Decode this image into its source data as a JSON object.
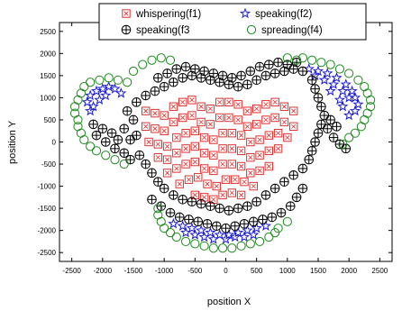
{
  "chart_data": {
    "type": "scatter",
    "title": "",
    "xlabel": "position X",
    "ylabel": "position Y",
    "xlim": [
      -2700,
      2700
    ],
    "ylim": [
      -2700,
      2700
    ],
    "xticks": [
      -2500,
      -2000,
      -1500,
      -1000,
      -500,
      0,
      500,
      1000,
      1500,
      2000,
      2500
    ],
    "yticks": [
      -2500,
      -2000,
      -1500,
      -1000,
      -500,
      0,
      500,
      1000,
      1500,
      2000,
      2500
    ],
    "grid": false,
    "legend_position": "top-center",
    "series": [
      {
        "name": "whispering(f1)",
        "marker": "square-x",
        "color": "#e03030",
        "points": [
          [
            -1300,
            700
          ],
          [
            -1150,
            650
          ],
          [
            -1000,
            600
          ],
          [
            -850,
            800
          ],
          [
            -700,
            900
          ],
          [
            -550,
            950
          ],
          [
            -400,
            800
          ],
          [
            -250,
            750
          ],
          [
            -100,
            900
          ],
          [
            50,
            900
          ],
          [
            200,
            850
          ],
          [
            350,
            700
          ],
          [
            500,
            750
          ],
          [
            650,
            850
          ],
          [
            800,
            900
          ],
          [
            950,
            800
          ],
          [
            1100,
            700
          ],
          [
            -1300,
            350
          ],
          [
            -1150,
            300
          ],
          [
            -1000,
            250
          ],
          [
            -850,
            450
          ],
          [
            -700,
            550
          ],
          [
            -550,
            600
          ],
          [
            -400,
            450
          ],
          [
            -250,
            400
          ],
          [
            -100,
            550
          ],
          [
            50,
            550
          ],
          [
            200,
            500
          ],
          [
            350,
            350
          ],
          [
            500,
            400
          ],
          [
            650,
            500
          ],
          [
            800,
            550
          ],
          [
            950,
            450
          ],
          [
            1100,
            350
          ],
          [
            -1250,
            0
          ],
          [
            -1100,
            -50
          ],
          [
            -950,
            -100
          ],
          [
            -800,
            100
          ],
          [
            -650,
            200
          ],
          [
            -500,
            250
          ],
          [
            -350,
            100
          ],
          [
            -200,
            50
          ],
          [
            -50,
            200
          ],
          [
            100,
            200
          ],
          [
            250,
            150
          ],
          [
            400,
            0
          ],
          [
            550,
            50
          ],
          [
            700,
            150
          ],
          [
            850,
            200
          ],
          [
            1000,
            100
          ],
          [
            -1100,
            -350
          ],
          [
            -950,
            -400
          ],
          [
            -800,
            -250
          ],
          [
            -650,
            -150
          ],
          [
            -500,
            -100
          ],
          [
            -350,
            -250
          ],
          [
            -200,
            -300
          ],
          [
            -50,
            -150
          ],
          [
            100,
            -150
          ],
          [
            250,
            -200
          ],
          [
            400,
            -350
          ],
          [
            550,
            -300
          ],
          [
            700,
            -200
          ],
          [
            850,
            -150
          ],
          [
            -950,
            -700
          ],
          [
            -800,
            -600
          ],
          [
            -650,
            -500
          ],
          [
            -500,
            -450
          ],
          [
            -350,
            -600
          ],
          [
            -200,
            -650
          ],
          [
            -50,
            -500
          ],
          [
            100,
            -500
          ],
          [
            250,
            -550
          ],
          [
            400,
            -700
          ],
          [
            550,
            -650
          ],
          [
            700,
            -550
          ],
          [
            -750,
            -950
          ],
          [
            -600,
            -850
          ],
          [
            -450,
            -800
          ],
          [
            -300,
            -950
          ],
          [
            -150,
            -1000
          ],
          [
            0,
            -850
          ],
          [
            150,
            -850
          ],
          [
            300,
            -900
          ],
          [
            450,
            -1000
          ],
          [
            -500,
            -1200
          ],
          [
            -350,
            -1250
          ],
          [
            -200,
            -1300
          ],
          [
            -50,
            -1200
          ],
          [
            100,
            -1150
          ],
          [
            250,
            -1200
          ]
        ]
      },
      {
        "name": "speaking(f2)",
        "marker": "star",
        "color": "#1a1adc",
        "points": [
          [
            -2200,
            1050
          ],
          [
            -2100,
            1150
          ],
          [
            -2000,
            1200
          ],
          [
            -1900,
            1250
          ],
          [
            -1800,
            1200
          ],
          [
            -1700,
            1100
          ],
          [
            -2250,
            900
          ],
          [
            -2150,
            800
          ],
          [
            -2050,
            950
          ],
          [
            -1950,
            1050
          ],
          [
            -2200,
            700
          ],
          [
            1350,
            1650
          ],
          [
            1500,
            1600
          ],
          [
            1650,
            1550
          ],
          [
            1800,
            1450
          ],
          [
            1950,
            1300
          ],
          [
            2050,
            1150
          ],
          [
            2100,
            1000
          ],
          [
            2150,
            850
          ],
          [
            2100,
            700
          ],
          [
            2000,
            600
          ],
          [
            1450,
            1500
          ],
          [
            1600,
            1400
          ],
          [
            1750,
            1300
          ],
          [
            1900,
            1150
          ],
          [
            2000,
            1000
          ],
          [
            1700,
            1150
          ],
          [
            1850,
            950
          ],
          [
            1900,
            800
          ],
          [
            -850,
            -1850
          ],
          [
            -700,
            -1900
          ],
          [
            -550,
            -1950
          ],
          [
            -400,
            -2000
          ],
          [
            -250,
            -2050
          ],
          [
            -100,
            -2100
          ],
          [
            50,
            -2100
          ],
          [
            200,
            -2050
          ],
          [
            350,
            -2000
          ],
          [
            500,
            -1950
          ],
          [
            650,
            -1900
          ],
          [
            -650,
            -2050
          ],
          [
            -500,
            -2100
          ],
          [
            -350,
            -2150
          ],
          [
            -200,
            -2200
          ],
          [
            0,
            -2200
          ],
          [
            150,
            -2150
          ],
          [
            300,
            -2150
          ],
          [
            450,
            -2100
          ]
        ]
      },
      {
        "name": "speaking(f3",
        "marker": "circle-plus",
        "color": "#000000",
        "points": [
          [
            -2150,
            400
          ],
          [
            -2000,
            300
          ],
          [
            -1850,
            200
          ],
          [
            -1750,
            50
          ],
          [
            -2100,
            150
          ],
          [
            -1950,
            0
          ],
          [
            -1800,
            -150
          ],
          [
            -1650,
            -250
          ],
          [
            -1550,
            -400
          ],
          [
            -1450,
            150
          ],
          [
            -1500,
            500
          ],
          [
            -1600,
            700
          ],
          [
            -1450,
            900
          ],
          [
            -1300,
            1050
          ],
          [
            -1150,
            1150
          ],
          [
            -1000,
            1250
          ],
          [
            -850,
            1350
          ],
          [
            -700,
            1450
          ],
          [
            -550,
            1500
          ],
          [
            -400,
            1450
          ],
          [
            -250,
            1400
          ],
          [
            -100,
            1350
          ],
          [
            50,
            1300
          ],
          [
            200,
            1250
          ],
          [
            350,
            1300
          ],
          [
            500,
            1400
          ],
          [
            650,
            1500
          ],
          [
            800,
            1550
          ],
          [
            950,
            1600
          ],
          [
            1100,
            1650
          ],
          [
            1250,
            1600
          ],
          [
            1400,
            1400
          ],
          [
            1450,
            1200
          ],
          [
            1500,
            1000
          ],
          [
            1550,
            800
          ],
          [
            1600,
            600
          ],
          [
            1550,
            400
          ],
          [
            1500,
            200
          ],
          [
            1450,
            0
          ],
          [
            1400,
            -200
          ],
          [
            1350,
            -400
          ],
          [
            1250,
            -600
          ],
          [
            1100,
            -750
          ],
          [
            950,
            -900
          ],
          [
            800,
            -1050
          ],
          [
            650,
            -1200
          ],
          [
            500,
            -1350
          ],
          [
            350,
            -1450
          ],
          [
            200,
            -1500
          ],
          [
            50,
            -1550
          ],
          [
            -100,
            -1500
          ],
          [
            -250,
            -1450
          ],
          [
            -400,
            -1400
          ],
          [
            -550,
            -1350
          ],
          [
            -700,
            -1300
          ],
          [
            -850,
            -1200
          ],
          [
            -1000,
            -1050
          ],
          [
            -1100,
            -900
          ],
          [
            -1200,
            -700
          ],
          [
            -1300,
            -500
          ],
          [
            -1400,
            -300
          ],
          [
            -1550,
            50
          ],
          [
            -1650,
            300
          ],
          [
            -1100,
            1450
          ],
          [
            -950,
            1550
          ],
          [
            -800,
            1650
          ],
          [
            -650,
            1700
          ],
          [
            -500,
            1650
          ],
          [
            -350,
            1600
          ],
          [
            -200,
            1550
          ],
          [
            -50,
            1500
          ],
          [
            100,
            1450
          ],
          [
            250,
            1500
          ],
          [
            400,
            1600
          ],
          [
            550,
            1700
          ],
          [
            700,
            1750
          ],
          [
            850,
            1800
          ],
          [
            1000,
            1750
          ],
          [
            1150,
            1800
          ],
          [
            -1200,
            -1300
          ],
          [
            -1050,
            -1450
          ],
          [
            -900,
            -1600
          ],
          [
            -750,
            -1700
          ],
          [
            -600,
            -1750
          ],
          [
            -450,
            -1800
          ],
          [
            -300,
            -1850
          ],
          [
            -150,
            -1900
          ],
          [
            0,
            -1950
          ],
          [
            150,
            -1900
          ],
          [
            300,
            -1850
          ],
          [
            450,
            -1800
          ],
          [
            600,
            -1750
          ],
          [
            750,
            -1700
          ],
          [
            900,
            -1600
          ],
          [
            1050,
            -1450
          ],
          [
            1150,
            -1250
          ],
          [
            1250,
            -1050
          ],
          [
            1650,
            300
          ],
          [
            1750,
            100
          ],
          [
            1850,
            -50
          ],
          [
            1950,
            -150
          ],
          [
            1700,
            500
          ],
          [
            1800,
            350
          ]
        ]
      },
      {
        "name": "spreading(f4)",
        "marker": "circle",
        "color": "#1f8a1f",
        "points": [
          [
            -2350,
            1100
          ],
          [
            -2300,
            1250
          ],
          [
            -2200,
            1350
          ],
          [
            -2050,
            1400
          ],
          [
            -1900,
            1450
          ],
          [
            -1750,
            1400
          ],
          [
            -1600,
            1350
          ],
          [
            -2400,
            950
          ],
          [
            -2450,
            800
          ],
          [
            -2450,
            650
          ],
          [
            -2400,
            500
          ],
          [
            -2400,
            350
          ],
          [
            -2350,
            200
          ],
          [
            -2300,
            50
          ],
          [
            -2200,
            -100
          ],
          [
            -2100,
            -200
          ],
          [
            -1950,
            -300
          ],
          [
            -1800,
            -400
          ],
          [
            -1650,
            -500
          ],
          [
            -1500,
            1600
          ],
          [
            -1350,
            1750
          ],
          [
            -1200,
            1850
          ],
          [
            -1050,
            1900
          ],
          [
            -900,
            1850
          ],
          [
            1250,
            1900
          ],
          [
            1400,
            1850
          ],
          [
            1550,
            1800
          ],
          [
            1700,
            1750
          ],
          [
            1850,
            1650
          ],
          [
            2000,
            1550
          ],
          [
            2150,
            1400
          ],
          [
            2250,
            1250
          ],
          [
            2300,
            1100
          ],
          [
            2350,
            950
          ],
          [
            2350,
            800
          ],
          [
            2300,
            650
          ],
          [
            2250,
            500
          ],
          [
            2200,
            350
          ],
          [
            2100,
            200
          ],
          [
            2000,
            100
          ],
          [
            1900,
            -50
          ],
          [
            1150,
            1850
          ],
          [
            1000,
            1900
          ],
          [
            -1100,
            -1500
          ],
          [
            -1100,
            -1650
          ],
          [
            -1050,
            -1800
          ],
          [
            -1000,
            -1950
          ],
          [
            -900,
            -2050
          ],
          [
            -800,
            -2150
          ],
          [
            -650,
            -2250
          ],
          [
            -500,
            -2300
          ],
          [
            -350,
            -2350
          ],
          [
            -200,
            -2400
          ],
          [
            -50,
            -2400
          ],
          [
            100,
            -2400
          ],
          [
            250,
            -2350
          ],
          [
            400,
            -2300
          ],
          [
            550,
            -2250
          ],
          [
            700,
            -2150
          ],
          [
            800,
            -2050
          ],
          [
            850,
            -1950
          ],
          [
            1000,
            -1800
          ]
        ]
      }
    ]
  }
}
